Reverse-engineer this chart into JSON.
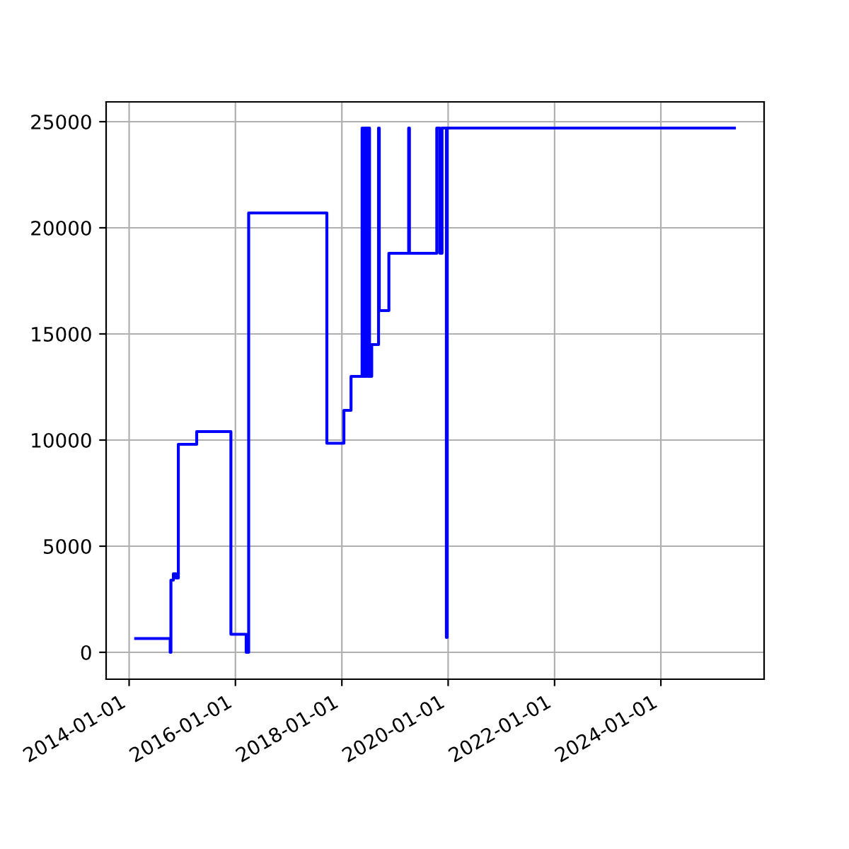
{
  "chart_data": {
    "type": "step",
    "grid": true,
    "xlim": [
      "2013-07-27",
      "2025-12-10"
    ],
    "ylim": [
      -1267,
      25933
    ],
    "xticks": [
      "2014-01-01",
      "2016-01-01",
      "2018-01-01",
      "2020-01-01",
      "2022-01-01",
      "2024-01-01"
    ],
    "yticks": [
      0,
      5000,
      10000,
      15000,
      20000,
      25000
    ],
    "series": [
      {
        "color": "#0000ff",
        "x": [
          "2014-02-15",
          "2014-10-10",
          "2014-10-15",
          "2014-11-01",
          "2014-11-20",
          "2014-12-05",
          "2015-04-10",
          "2015-12-01",
          "2016-03-15",
          "2016-04-01",
          "2017-09-20",
          "2018-01-15",
          "2018-03-05",
          "2018-05-20",
          "2018-05-25",
          "2018-06-05",
          "2018-06-12",
          "2018-06-20",
          "2018-06-28",
          "2018-07-05",
          "2018-07-10",
          "2018-07-25",
          "2018-09-10",
          "2018-09-15",
          "2018-11-20",
          "2019-04-05",
          "2019-04-10",
          "2019-10-15",
          "2019-11-05",
          "2019-11-20",
          "2019-12-20",
          "2019-12-25",
          "2025-05-20"
        ],
        "values": [
          650,
          0,
          3400,
          3700,
          3500,
          9800,
          10400,
          850,
          0,
          20700,
          9850,
          11400,
          13000,
          24700,
          13000,
          24700,
          13000,
          24700,
          13000,
          24700,
          13000,
          14500,
          24700,
          16100,
          18800,
          24700,
          18800,
          24700,
          18800,
          24700,
          700,
          24700,
          24700
        ]
      }
    ]
  }
}
